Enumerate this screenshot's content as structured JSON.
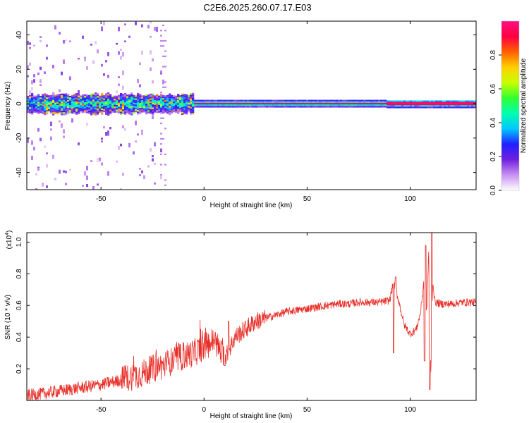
{
  "title": "C2E6.2025.260.07.17.E03",
  "colors": {
    "line": "#e8302a",
    "band_core": "#e8103c",
    "background": "#ffffff"
  },
  "chart_data": [
    {
      "type": "heatmap",
      "name": "spectrogram",
      "xlabel": "Height of straight line (km)",
      "ylabel": "Frequency (Hz)",
      "xlim": [
        -86,
        132
      ],
      "ylim": [
        -50,
        48
      ],
      "x_ticks": [
        -50,
        0,
        50,
        100
      ],
      "y_ticks": [
        -40,
        -20,
        0,
        20,
        40
      ],
      "colorbar": {
        "label": "Normalized spectral amplitude",
        "range": [
          0.0,
          1.0
        ],
        "ticks": [
          0.0,
          0.2,
          0.4,
          0.6,
          0.8
        ],
        "colormap": [
          "#ffffff",
          "#c890f0",
          "#7020e0",
          "#2020ff",
          "#00c8ff",
          "#00ffb0",
          "#30ff30",
          "#c8ff00",
          "#ffd000",
          "#ff6000",
          "#ff0040",
          "#ff1080"
        ]
      },
      "features": [
        {
          "from": -86,
          "to": -5,
          "desc": "broad noisy band near 0 Hz",
          "amplitude": 0.35,
          "halfwidth_hz": 5
        },
        {
          "from": -5,
          "to": 132,
          "desc": "narrow strong band at 0 Hz",
          "amplitude": 0.95,
          "halfwidth_hz": 1.5
        },
        {
          "from": -86,
          "to": -20,
          "desc": "scattered weak speckle across all frequencies",
          "amplitude": 0.1
        }
      ]
    },
    {
      "type": "line",
      "name": "snr",
      "xlabel": "Height of straight line (km)",
      "ylabel": "SNR (10 * v/v)",
      "y_scale_label": "(x10",
      "y_scale_exp": "4",
      "xlim": [
        -86,
        132
      ],
      "ylim": [
        0,
        1.06
      ],
      "x_ticks": [
        -50,
        0,
        50,
        100
      ],
      "y_ticks": [
        0.2,
        0.4,
        0.6,
        0.8,
        1.0
      ],
      "series": [
        {
          "name": "SNR",
          "x": [
            -86,
            -80,
            -70,
            -60,
            -50,
            -40,
            -30,
            -25,
            -20,
            -15,
            -10,
            -5,
            0,
            5,
            10,
            15,
            20,
            25,
            30,
            35,
            40,
            45,
            50,
            55,
            60,
            65,
            70,
            75,
            80,
            85,
            90,
            92,
            95,
            97,
            100,
            103,
            105,
            107,
            108,
            109,
            110,
            111,
            112,
            115,
            120,
            125,
            132
          ],
          "y": [
            0.03,
            0.04,
            0.06,
            0.08,
            0.1,
            0.13,
            0.17,
            0.2,
            0.22,
            0.25,
            0.28,
            0.3,
            0.34,
            0.38,
            0.26,
            0.4,
            0.45,
            0.5,
            0.52,
            0.54,
            0.56,
            0.57,
            0.58,
            0.59,
            0.6,
            0.61,
            0.61,
            0.62,
            0.62,
            0.62,
            0.63,
            0.75,
            0.6,
            0.48,
            0.42,
            0.45,
            0.55,
            0.8,
            0.55,
            0.95,
            0.15,
            0.75,
            0.62,
            0.61,
            0.61,
            0.62,
            0.62
          ],
          "spikes": [
            [
              92,
              0.3
            ],
            [
              93,
              0.78
            ],
            [
              109.5,
              0.07
            ],
            [
              110.5,
              1.06
            ],
            [
              107,
              0.25
            ],
            [
              107.5,
              0.98
            ],
            [
              10,
              0.22
            ],
            [
              12,
              0.5
            ]
          ]
        }
      ]
    }
  ]
}
